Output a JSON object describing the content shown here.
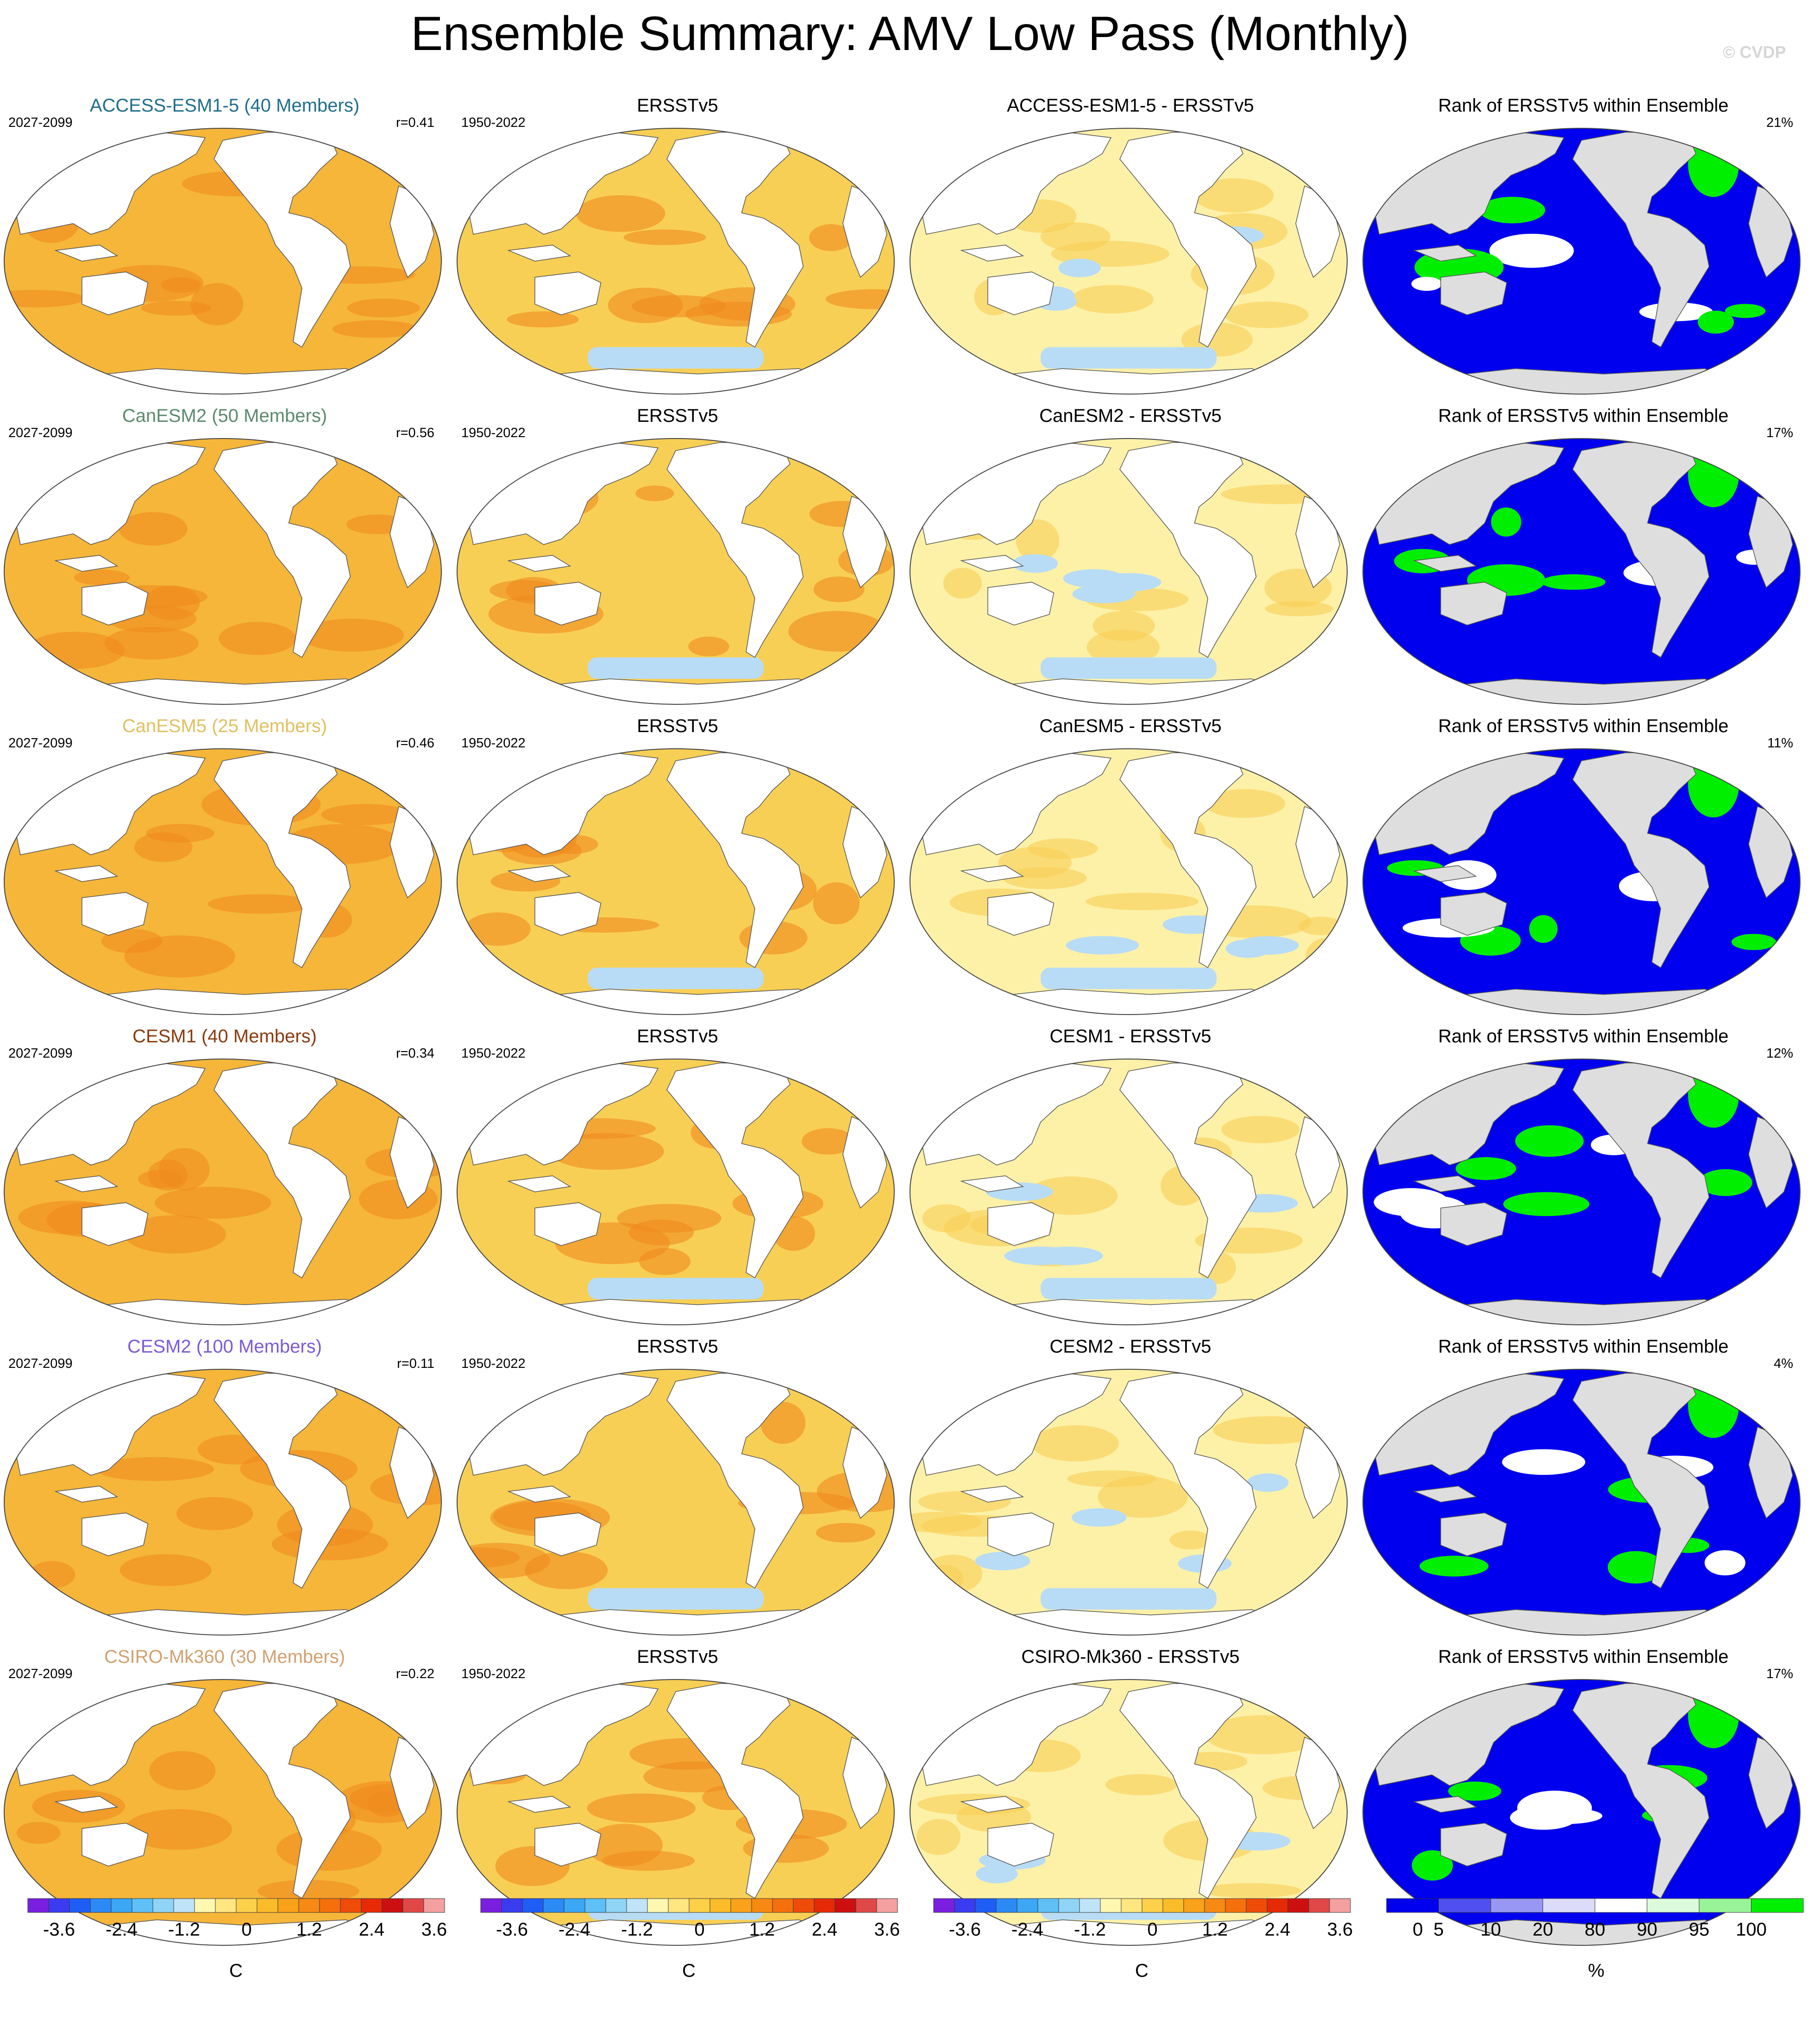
{
  "title": "Ensemble Summary: AMV Low Pass (Monthly)",
  "watermark": "© CVDP",
  "columns": [
    "model",
    "observation",
    "difference",
    "rank"
  ],
  "rows": [
    {
      "model": "ACCESS-ESM1-5 (40 Members)",
      "model_color": "#1f6e8c",
      "model_period": "2027-2099",
      "r": "r=0.41",
      "obs_title": "ERSSTv5",
      "obs_period": "1950-2022",
      "diff_title": "ACCESS-ESM1-5 - ERSSTv5",
      "rank_title": "Rank of ERSSTv5 within Ensemble",
      "rank_pct": "21%"
    },
    {
      "model": "CanESM2 (50 Members)",
      "model_color": "#5b8a6e",
      "model_period": "2027-2099",
      "r": "r=0.56",
      "obs_title": "ERSSTv5",
      "obs_period": "1950-2022",
      "diff_title": "CanESM2 - ERSSTv5",
      "rank_title": "Rank of ERSSTv5 within Ensemble",
      "rank_pct": "17%"
    },
    {
      "model": "CanESM5 (25 Members)",
      "model_color": "#e0c060",
      "model_period": "2027-2099",
      "r": "r=0.46",
      "obs_title": "ERSSTv5",
      "obs_period": "1950-2022",
      "diff_title": "CanESM5 - ERSSTv5",
      "rank_title": "Rank of ERSSTv5 within Ensemble",
      "rank_pct": "11%"
    },
    {
      "model": "CESM1 (40 Members)",
      "model_color": "#8b3a0e",
      "model_period": "2027-2099",
      "r": "r=0.34",
      "obs_title": "ERSSTv5",
      "obs_period": "1950-2022",
      "diff_title": "CESM1 - ERSSTv5",
      "rank_title": "Rank of ERSSTv5 within Ensemble",
      "rank_pct": "12%"
    },
    {
      "model": "CESM2 (100 Members)",
      "model_color": "#7b5bd6",
      "model_period": "2027-2099",
      "r": "r=0.11",
      "obs_title": "ERSSTv5",
      "obs_period": "1950-2022",
      "diff_title": "CESM2 - ERSSTv5",
      "rank_title": "Rank of ERSSTv5 within Ensemble",
      "rank_pct": "4%"
    },
    {
      "model": "CSIRO-Mk360 (30 Members)",
      "model_color": "#d2a070",
      "model_period": "2027-2099",
      "r": "r=0.22",
      "obs_title": "ERSSTv5",
      "obs_period": "1950-2022",
      "diff_title": "CSIRO-Mk360 - ERSSTv5",
      "rank_title": "Rank of ERSSTv5 within Ensemble",
      "rank_pct": "17%"
    }
  ],
  "colors": {
    "ocean_model": "#f5b63a",
    "ocean_obs": "#f8cf55",
    "ocean_diff": "#fdf1a8",
    "land": "#ffffff",
    "rank_ocean": "#0000ee",
    "rank_land": "#dedede",
    "rank_green": "#00ee00",
    "cool": "#b8dcf5",
    "warm_hot": "#f08a1e"
  },
  "chart_data": {
    "type": "heatmap",
    "temperature_colorbar": {
      "unit": "C",
      "tick_labels": [
        "-3.6",
        "-2.4",
        "-1.2",
        "0",
        "1.2",
        "2.4",
        "3.6"
      ],
      "colors": [
        "#7a1fe0",
        "#3b3bf0",
        "#1e5ef5",
        "#2c8af5",
        "#3ba7f5",
        "#5ec0f5",
        "#8fd4f5",
        "#bfe4f7",
        "#fff8b0",
        "#ffe680",
        "#fdd04a",
        "#fbbc2a",
        "#f9a21a",
        "#f78a12",
        "#f5700c",
        "#ef4c08",
        "#e62a06",
        "#cc1010",
        "#e04848",
        "#f4a0a0"
      ]
    },
    "rank_colorbar": {
      "unit": "%",
      "tick_labels": [
        "0",
        "5",
        "10",
        "20",
        "80",
        "90",
        "95",
        "100"
      ],
      "colors": [
        "#0000ee",
        "#5050f0",
        "#9898f4",
        "#dcdcfa",
        "#ffffff",
        "#dcfadc",
        "#98f498",
        "#00ee00"
      ]
    }
  }
}
